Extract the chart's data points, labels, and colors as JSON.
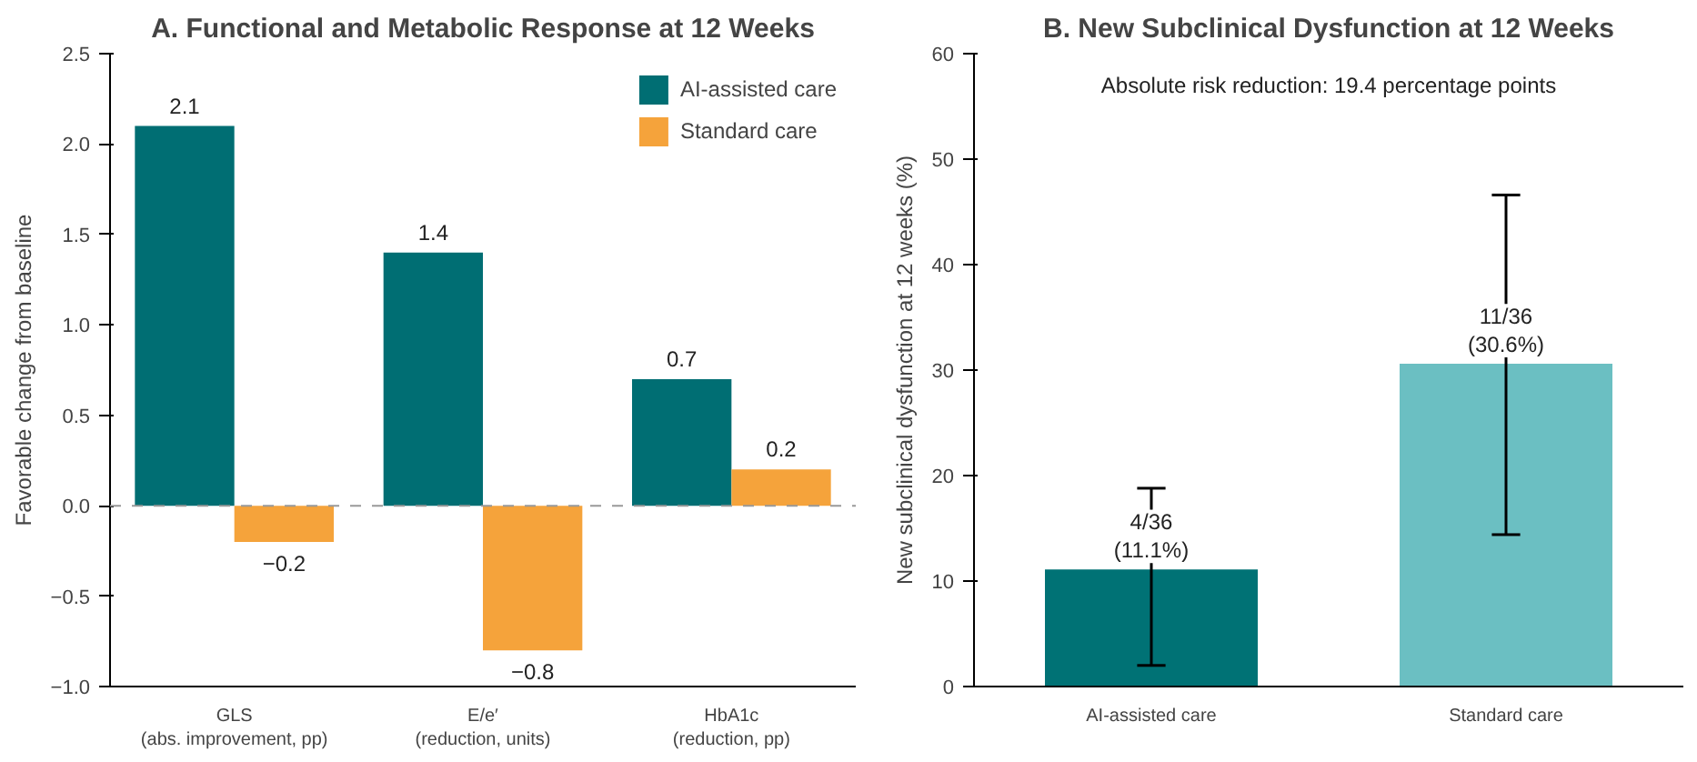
{
  "chart_data": [
    {
      "type": "bar",
      "title": "A. Functional and Metabolic Response at 12 Weeks",
      "ylabel": "Favorable change from baseline",
      "categories": [
        "GLS\n(abs. improvement, pp)",
        "E/e′\n(reduction, units)",
        "HbA1c\n(reduction, pp)"
      ],
      "series": [
        {
          "name": "AI-assisted care",
          "color": "#006e73",
          "values": [
            2.1,
            1.4,
            0.7
          ]
        },
        {
          "name": "Standard care",
          "color": "#f5a33b",
          "values": [
            -0.2,
            -0.8,
            0.2
          ]
        }
      ],
      "ylim": [
        -1.0,
        2.5
      ],
      "yticks": [
        {
          "value": -1.0,
          "label": "−1.0"
        },
        {
          "value": -0.5,
          "label": "−0.5"
        },
        {
          "value": 0,
          "label": "0.0"
        },
        {
          "value": 0.5,
          "label": "0.5"
        },
        {
          "value": 1.0,
          "label": "1.0"
        },
        {
          "value": 1.5,
          "label": "1.5"
        },
        {
          "value": 2.0,
          "label": "2.0"
        },
        {
          "value": 2.5,
          "label": "2.5"
        }
      ],
      "ref_lines": [
        {
          "axis": "y",
          "value": 0,
          "color": "#999999",
          "line_style": "dashed"
        }
      ],
      "data_labels": true,
      "legend": "top right",
      "grid": false
    },
    {
      "type": "bar",
      "title": "B. New Subclinical Dysfunction at 12 Weeks",
      "ylabel": "New subclinical dysfunction at 12 weeks (%)",
      "categories": [
        "AI-assisted care",
        "Standard care"
      ],
      "values": [
        11.1,
        30.6
      ],
      "colors": [
        "#007275",
        "#6bbfc2"
      ],
      "errors": [
        [
          2.0,
          18.8
        ],
        [
          14.4,
          46.6
        ]
      ],
      "value_labels": [
        "4/36\n(11.1%)",
        "11/36\n(30.6%)"
      ],
      "ylim": [
        0,
        60
      ],
      "yticks": [
        0,
        10,
        20,
        30,
        40,
        50,
        60
      ],
      "annotations": [
        "Absolute risk reduction: 19.4 percentage points"
      ],
      "grid": false
    }
  ]
}
